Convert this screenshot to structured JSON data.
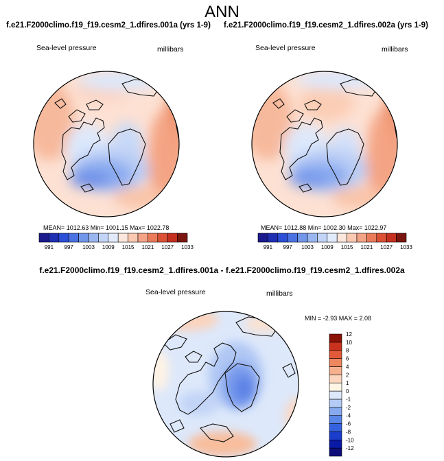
{
  "figure": {
    "season": "ANN",
    "panel_titles": [
      "f.e21.F2000climo.f19_f19.cesm2_1.dfires.001a (yrs 1-9)",
      "f.e21.F2000climo.f19_f19.cesm2_1.dfires.002a (yrs 1-9)"
    ],
    "diff_title": "f.e21.F2000climo.f19_f19.cesm2_1.dfires.001a - f.e21.F2000climo.f19_f19.cesm2_1.dfires.002a"
  },
  "chart_data": [
    {
      "type": "polar-contour-map",
      "projection": "north-polar-stereographic",
      "variable": "Sea-level pressure",
      "units": "millibars",
      "stats": {
        "mean": "1012.63",
        "min": "1001.15",
        "max": "1022.78"
      },
      "stats_text": "MEAN= 1012.63   Min= 1001.15   Max= 1022.78",
      "colorbar": {
        "orientation": "horizontal",
        "colors": [
          "#1a1a8c",
          "#1f2fb3",
          "#2b4fd6",
          "#4a72e3",
          "#7196ea",
          "#9ab6f1",
          "#c2d4f7",
          "#e2ebfb",
          "#fde7dc",
          "#fbc9b2",
          "#f4a486",
          "#ea7b5a",
          "#dc5135",
          "#c42f1f",
          "#7a1510"
        ],
        "tick_labels": [
          "991",
          "997",
          "1003",
          "1009",
          "1015",
          "1021",
          "1027",
          "1033"
        ]
      }
    },
    {
      "type": "polar-contour-map",
      "projection": "north-polar-stereographic",
      "variable": "Sea-level pressure",
      "units": "millibars",
      "stats": {
        "mean": "1012.88",
        "min": "1002.30",
        "max": "1022.97"
      },
      "stats_text": "MEAN= 1012.88   Min= 1002.30   Max= 1022.97",
      "colorbar": {
        "orientation": "horizontal",
        "colors": [
          "#1a1a8c",
          "#1f2fb3",
          "#2b4fd6",
          "#4a72e3",
          "#7196ea",
          "#9ab6f1",
          "#c2d4f7",
          "#e2ebfb",
          "#fde7dc",
          "#fbc9b2",
          "#f4a486",
          "#ea7b5a",
          "#dc5135",
          "#c42f1f",
          "#7a1510"
        ],
        "tick_labels": [
          "991",
          "997",
          "1003",
          "1009",
          "1015",
          "1021",
          "1027",
          "1033"
        ]
      }
    },
    {
      "type": "polar-contour-map",
      "projection": "north-polar-stereographic",
      "variable": "Sea-level pressure",
      "units": "millibars",
      "stats": {
        "min": "-2.93",
        "max": "2.08"
      },
      "stats_text": "MIN =  -2.93  MAX =   2.08",
      "colorbar": {
        "orientation": "vertical",
        "colors": [
          "#0d0d7a",
          "#0a1aa6",
          "#1a3dcc",
          "#3462de",
          "#5a86e8",
          "#86a9ef",
          "#b3cbf5",
          "#dde8fa",
          "#fff6e6",
          "#fbd5bd",
          "#f6b08d",
          "#ee8660",
          "#e25a3a",
          "#c9321d",
          "#8a1206"
        ],
        "tick_labels": [
          "-12",
          "-10",
          "-8",
          "-6",
          "-4",
          "-2",
          "-1",
          "0",
          "1",
          "2",
          "4",
          "6",
          "8",
          "10",
          "12"
        ]
      }
    }
  ]
}
